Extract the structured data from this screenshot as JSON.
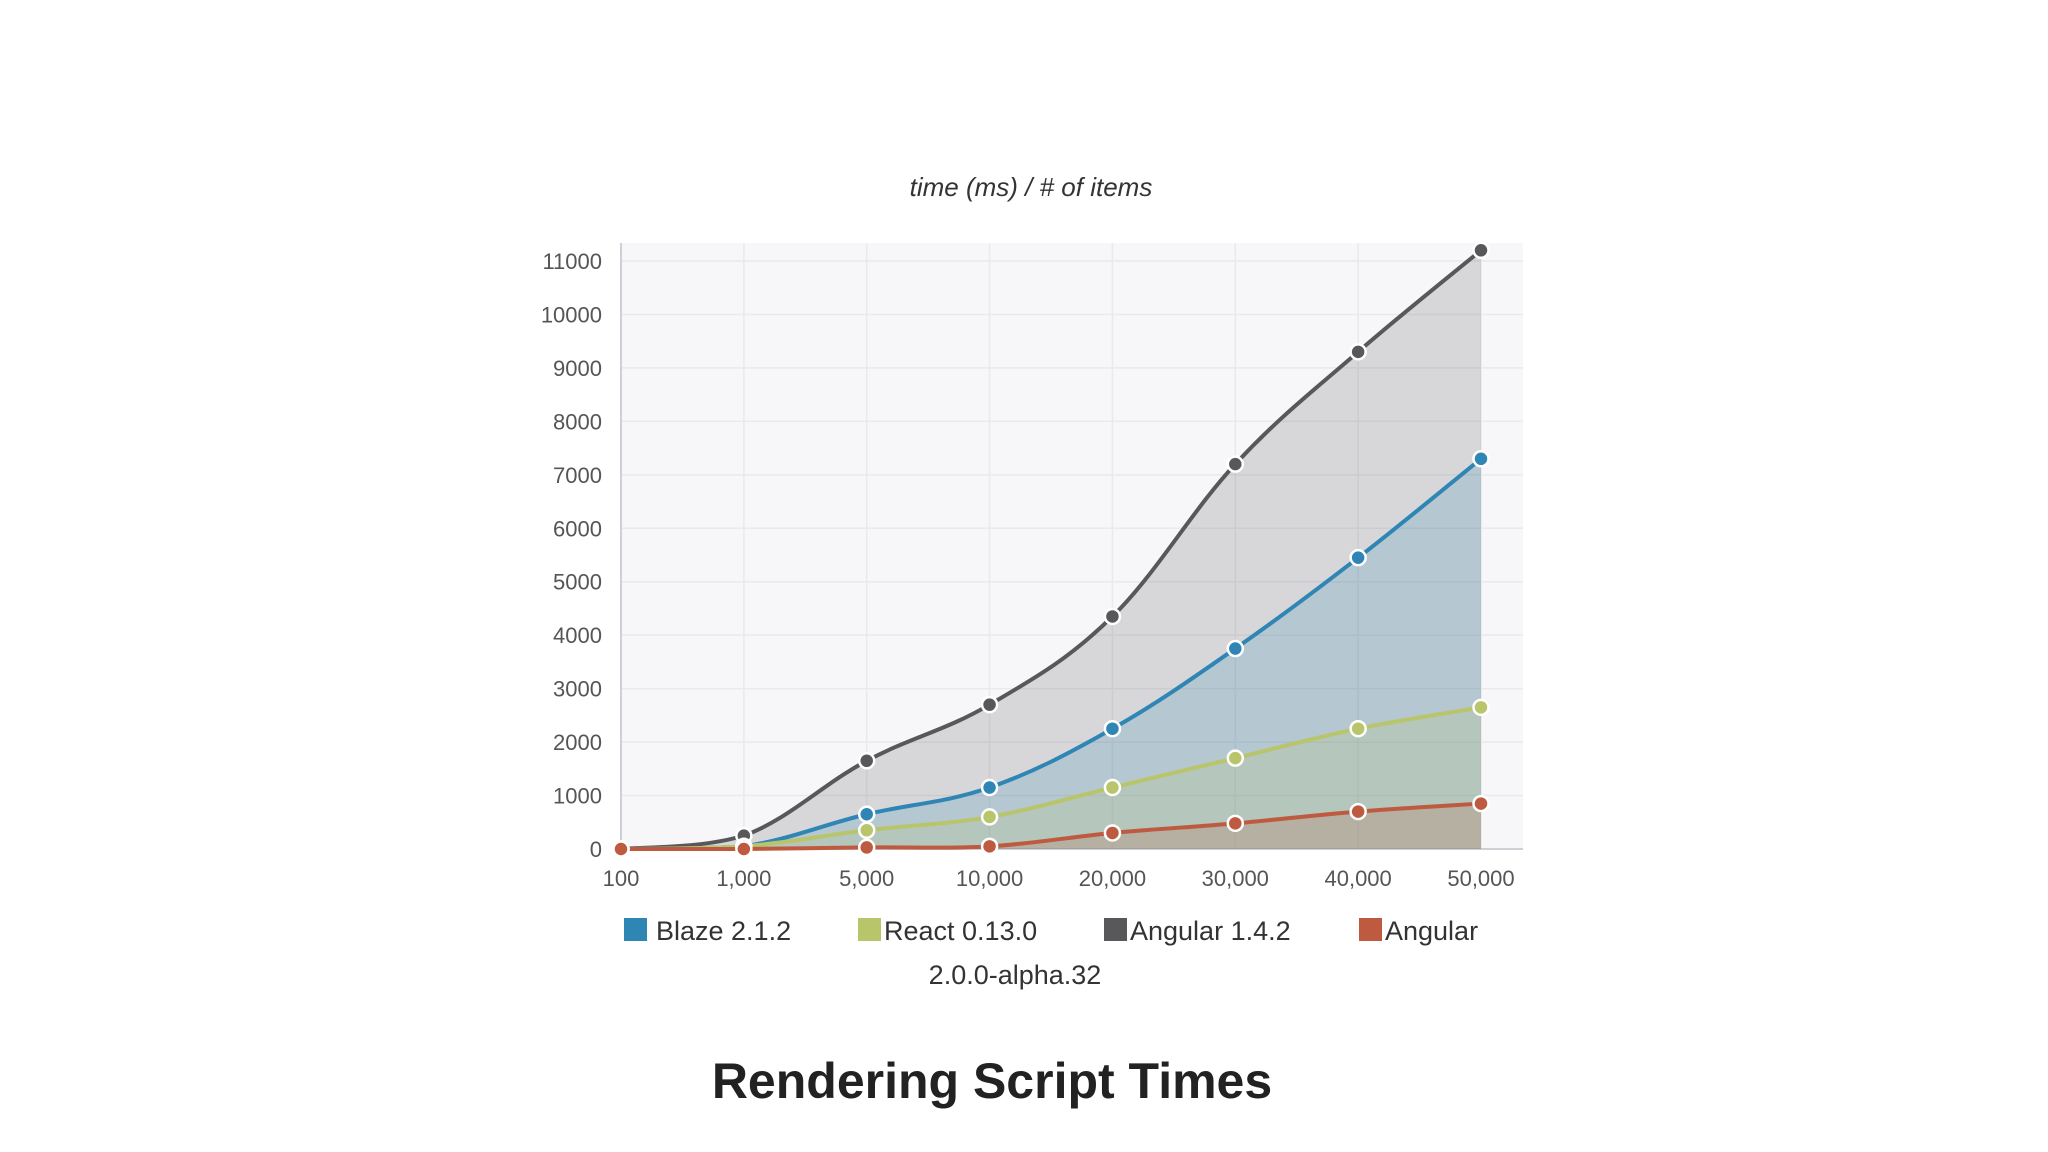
{
  "caption": "Rendering Script Times",
  "chart_data": {
    "type": "area",
    "title": "time (ms) / # of items",
    "xlabel": "",
    "ylabel": "",
    "categories": [
      "100",
      "1,000",
      "5,000",
      "10,000",
      "20,000",
      "30,000",
      "40,000",
      "50,000"
    ],
    "ylim": [
      0,
      11000
    ],
    "yticks": [
      0,
      1000,
      2000,
      3000,
      4000,
      5000,
      6000,
      7000,
      8000,
      9000,
      10000,
      11000
    ],
    "grid": true,
    "legend_position": "bottom",
    "series": [
      {
        "name": "Angular 1.4.2",
        "color": "#58585b",
        "values": [
          0,
          250,
          1650,
          2700,
          4350,
          7200,
          9300,
          11200
        ]
      },
      {
        "name": "Blaze 2.1.2",
        "color": "#2f86b5",
        "values": [
          0,
          50,
          650,
          1150,
          2250,
          3750,
          5450,
          7300
        ]
      },
      {
        "name": "React 0.13.0",
        "color": "#b9c56b",
        "values": [
          0,
          50,
          350,
          600,
          1150,
          1700,
          2250,
          2650
        ]
      },
      {
        "name": "Angular 2.0.0-alpha.32",
        "color": "#bd5a3f",
        "values": [
          0,
          0,
          30,
          50,
          300,
          480,
          700,
          850
        ]
      }
    ],
    "legend": [
      {
        "label": "Blaze 2.1.2",
        "color": "#2f86b5"
      },
      {
        "label": "React 0.13.0",
        "color": "#b9c56b"
      },
      {
        "label": "Angular 1.4.2",
        "color": "#58585b"
      },
      {
        "label": "Angular",
        "label_line2": "2.0.0-alpha.32",
        "color": "#bd5a3f"
      }
    ]
  }
}
